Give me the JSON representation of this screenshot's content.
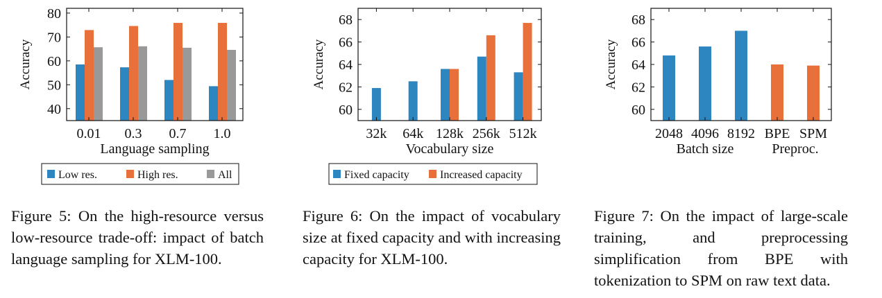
{
  "chart_data": [
    {
      "type": "bar",
      "ylabel": "Accuracy",
      "xlabel": "Language sampling",
      "ylim": [
        35,
        82
      ],
      "yticks": [
        40,
        50,
        60,
        70,
        80
      ],
      "categories": [
        "0.01",
        "0.3",
        "0.7",
        "1.0"
      ],
      "series": [
        {
          "name": "Low res.",
          "color": "#2e86c1",
          "values": [
            58.5,
            57.3,
            52.0,
            49.4
          ]
        },
        {
          "name": "High res.",
          "color": "#e8703a",
          "values": [
            72.9,
            74.6,
            75.9,
            75.9
          ]
        },
        {
          "name": "All",
          "color": "#999999",
          "values": [
            65.7,
            66.1,
            65.5,
            64.6
          ]
        }
      ],
      "legend": "bottom"
    },
    {
      "type": "bar",
      "ylabel": "Accuracy",
      "xlabel": "Vocabulary size",
      "ylim": [
        59,
        69
      ],
      "yticks": [
        60,
        62,
        64,
        66,
        68
      ],
      "categories": [
        "32k",
        "64k",
        "128k",
        "256k",
        "512k"
      ],
      "series": [
        {
          "name": "Fixed capacity",
          "color": "#2e86c1",
          "values": [
            61.9,
            62.5,
            63.6,
            64.7,
            63.3
          ]
        },
        {
          "name": "Increased capacity",
          "color": "#e8703a",
          "values": [
            null,
            null,
            63.6,
            66.6,
            67.7
          ]
        }
      ],
      "legend": "bottom"
    },
    {
      "type": "bar",
      "ylabel": "Accuracy",
      "xlabel": "Batch size",
      "xlabel2": "Preproc.",
      "ylim": [
        59,
        69
      ],
      "yticks": [
        60,
        62,
        64,
        66,
        68
      ],
      "categories": [
        "2048",
        "4096",
        "8192",
        "BPE",
        "SPM"
      ],
      "values": [
        64.8,
        65.6,
        67.0,
        64.0,
        63.9
      ],
      "colors": [
        "#2e86c1",
        "#2e86c1",
        "#2e86c1",
        "#e8703a",
        "#e8703a"
      ]
    }
  ],
  "captions": {
    "fig5": "Figure 5: On the high-resource versus low-resource trade-off: impact of batch language sampling for XLM-100.",
    "fig6": "Figure 6: On the impact of vocabulary size at fixed capacity and with increasing capacity for XLM-100.",
    "fig7": "Figure 7: On the impact of large-scale training, and preprocessing simplification from BPE with tokenization to SPM on raw text data."
  }
}
